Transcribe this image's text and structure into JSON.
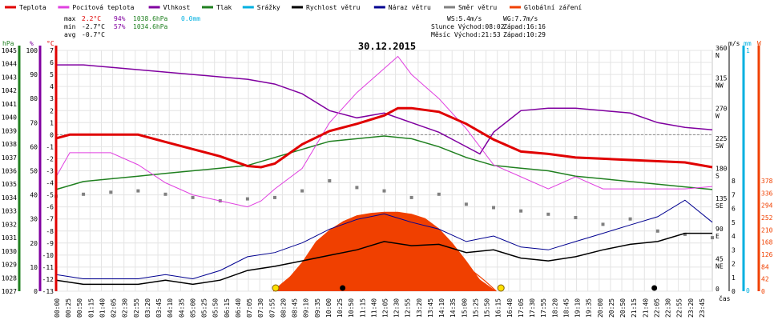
{
  "chart_data": {
    "type": "line",
    "title": "30.12.2015",
    "legend": [
      {
        "label": "Teplota",
        "color": "#e00000"
      },
      {
        "label": "Pocitová teplota",
        "color": "#e040e0"
      },
      {
        "label": "Vlhkost",
        "color": "#8000a0"
      },
      {
        "label": "Tlak",
        "color": "#208020"
      },
      {
        "label": "Srážky",
        "color": "#00b0e0"
      },
      {
        "label": "Rychlost větru",
        "color": "#000000"
      },
      {
        "label": "Náraz větru",
        "color": "#000090"
      },
      {
        "label": "Směr větru",
        "color": "#808080"
      },
      {
        "label": "Globální záření",
        "color": "#f04000"
      }
    ],
    "stats": {
      "labels": [
        "max",
        "min",
        "avg"
      ],
      "temp": [
        "2.2°C",
        "-2.7°C",
        "-0.7°C"
      ],
      "hum": [
        "94%",
        "57%",
        ""
      ],
      "press": [
        "1038.6hPa",
        "1034.6hPa",
        ""
      ],
      "rain": [
        "0.0mm",
        "",
        ""
      ]
    },
    "wind_info": {
      "ws": "WS:5.4m/s",
      "wg": "WG:7.7m/s"
    },
    "sun_info": {
      "sunrise": "Slunce Východ:08:02",
      "sunset": "Západ:16:16"
    },
    "moon_info": {
      "moonrise": "Měsíc Východ:21:53",
      "moonset": "Západ:10:29"
    },
    "axis_units": {
      "press": "hPa",
      "hum": "%",
      "temp": "°C",
      "ms": "m/s",
      "mm": "mm",
      "rad": "W",
      "xlabel": "čas"
    },
    "x_ticks": [
      "00:00",
      "00:25",
      "00:50",
      "01:15",
      "01:40",
      "02:05",
      "02:30",
      "02:55",
      "03:20",
      "03:45",
      "04:10",
      "04:35",
      "05:00",
      "05:25",
      "05:50",
      "06:15",
      "06:40",
      "07:05",
      "07:30",
      "07:55",
      "08:20",
      "08:45",
      "09:10",
      "09:35",
      "10:00",
      "10:25",
      "10:50",
      "11:15",
      "11:40",
      "12:05",
      "12:30",
      "12:55",
      "13:20",
      "13:45",
      "14:10",
      "14:35",
      "15:00",
      "15:25",
      "15:50",
      "16:15",
      "16:40",
      "17:05",
      "17:30",
      "17:55",
      "18:20",
      "18:45",
      "19:10",
      "19:35",
      "20:00",
      "20:25",
      "20:50",
      "21:15",
      "21:40",
      "22:05",
      "22:30",
      "22:55",
      "23:20",
      "23:45"
    ],
    "press_ticks": [
      "1045",
      "1044",
      "1043",
      "1042",
      "1041",
      "1040",
      "1039",
      "1038",
      "1037",
      "1036",
      "1035",
      "1034",
      "1033",
      "1032",
      "1031",
      "1030",
      "1029",
      "1028",
      "1027"
    ],
    "hum_ticks": [
      "100",
      "90",
      "80",
      "70",
      "60",
      "50",
      "40",
      "30",
      "20",
      "10",
      "0"
    ],
    "temp_ticks": [
      "7",
      "6",
      "5",
      "4",
      "3",
      "2",
      "1",
      "0",
      "-1",
      "-2",
      "-3",
      "-4",
      "-5",
      "-6",
      "-7",
      "-8",
      "-9",
      "-10",
      "-11",
      "-12",
      "-13"
    ],
    "dir_ticks": [
      {
        "deg": "360",
        "dir": "N"
      },
      {
        "deg": "315",
        "dir": "NW"
      },
      {
        "deg": "270",
        "dir": "W"
      },
      {
        "deg": "225",
        "dir": "SW"
      },
      {
        "deg": "180",
        "dir": "S"
      },
      {
        "deg": "135",
        "dir": "SE"
      },
      {
        "deg": "90",
        "dir": "E"
      },
      {
        "deg": "45",
        "dir": "NE"
      },
      {
        "deg": "0",
        "dir": ""
      }
    ],
    "ms_ticks": [
      "8",
      "7",
      "6",
      "5",
      "4",
      "3",
      "2",
      "1",
      "0"
    ],
    "mm_ticks": [
      "1",
      "0"
    ],
    "rad_ticks": [
      "378",
      "336",
      "294",
      "252",
      "210",
      "168",
      "126",
      "84",
      "42",
      "0"
    ],
    "ylim": {
      "temp": [
        -13,
        7
      ],
      "press": [
        1027,
        1045
      ],
      "hum": [
        0,
        100
      ],
      "dir": [
        0,
        360
      ],
      "wind": [
        0,
        8
      ],
      "rad": [
        0,
        378
      ]
    },
    "series": [
      {
        "name": "Teplota",
        "color": "#e00000",
        "x": [
          0,
          0.5,
          1,
          2,
          3,
          4,
          5,
          6,
          7,
          7.5,
          8,
          9,
          10,
          11,
          12,
          12.5,
          13,
          14,
          15,
          16,
          17,
          18,
          19,
          20,
          21,
          22,
          23,
          24
        ],
        "values": [
          -0.3,
          0,
          0,
          0,
          0,
          -0.6,
          -1.2,
          -1.8,
          -2.6,
          -2.7,
          -2.4,
          -0.8,
          0.3,
          0.9,
          1.6,
          2.2,
          2.2,
          1.9,
          0.9,
          -0.4,
          -1.4,
          -1.6,
          -1.9,
          -2.0,
          -2.1,
          -2.2,
          -2.3,
          -2.7
        ]
      },
      {
        "name": "Pocitová teplota",
        "color": "#e040e0",
        "x": [
          0,
          0.5,
          1,
          2,
          3,
          4,
          5,
          6,
          7,
          7.5,
          8,
          9,
          10,
          11,
          12,
          12.5,
          13,
          13.5,
          14,
          15,
          16,
          17,
          18,
          19,
          20,
          21,
          22,
          23,
          24
        ],
        "values": [
          -3.5,
          -1.5,
          -1.5,
          -1.5,
          -2.5,
          -4.0,
          -5.0,
          -5.5,
          -6.0,
          -5.5,
          -4.5,
          -2.8,
          1.0,
          3.5,
          5.5,
          6.5,
          5.0,
          4.0,
          3.0,
          0.5,
          -2.5,
          -3.5,
          -4.5,
          -3.5,
          -4.5,
          -4.5,
          -4.5,
          -4.5,
          -4.3
        ]
      },
      {
        "name": "Vlhkost",
        "color": "#8000a0",
        "x": [
          0,
          1,
          2,
          3,
          4,
          5,
          6,
          7,
          8,
          9,
          10,
          11,
          12,
          13,
          14,
          15,
          15.5,
          16,
          17,
          18,
          19,
          20,
          21,
          22,
          23,
          24
        ],
        "values": [
          94,
          94,
          93,
          92,
          91,
          90,
          89,
          88,
          86,
          82,
          75,
          72,
          74,
          70,
          66,
          60,
          57,
          66,
          75,
          76,
          76,
          75,
          74,
          70,
          68,
          67
        ]
      },
      {
        "name": "Tlak",
        "color": "#208020",
        "x": [
          0,
          1,
          2,
          3,
          4,
          5,
          6,
          7,
          8,
          9,
          10,
          11,
          12,
          13,
          14,
          15,
          16,
          17,
          18,
          19,
          20,
          21,
          22,
          23,
          24
        ],
        "values": [
          1034.6,
          1035.2,
          1035.4,
          1035.6,
          1035.8,
          1036.0,
          1036.2,
          1036.4,
          1037.0,
          1037.6,
          1038.2,
          1038.4,
          1038.6,
          1038.4,
          1037.8,
          1037.0,
          1036.4,
          1036.2,
          1036.0,
          1035.6,
          1035.4,
          1035.2,
          1035.0,
          1034.8,
          1034.6
        ]
      },
      {
        "name": "Rychlost větru",
        "color": "#000000",
        "x": [
          0,
          1,
          2,
          3,
          4,
          5,
          6,
          7,
          8,
          9,
          10,
          11,
          12,
          13,
          14,
          15,
          16,
          17,
          18,
          19,
          20,
          21,
          22,
          23,
          24
        ],
        "values": [
          0.8,
          0.5,
          0.5,
          0.5,
          0.8,
          0.5,
          0.8,
          1.5,
          1.8,
          2.2,
          2.6,
          3.0,
          3.6,
          3.3,
          3.4,
          2.8,
          3.0,
          2.4,
          2.2,
          2.5,
          3.0,
          3.4,
          3.6,
          4.2,
          4.2
        ]
      },
      {
        "name": "Náraz větru",
        "color": "#000090",
        "x": [
          0,
          1,
          2,
          3,
          4,
          5,
          6,
          7,
          8,
          9,
          10,
          11,
          12,
          13,
          14,
          15,
          16,
          17,
          18,
          19,
          20,
          21,
          22,
          23,
          24
        ],
        "values": [
          1.2,
          0.9,
          0.9,
          0.9,
          1.2,
          0.9,
          1.5,
          2.5,
          2.8,
          3.5,
          4.5,
          5.2,
          5.6,
          5.0,
          4.5,
          3.6,
          4.0,
          3.2,
          3.0,
          3.6,
          4.2,
          4.8,
          5.4,
          6.6,
          5.0
        ]
      },
      {
        "name": "Globální záření",
        "color": "#f04000",
        "x": [
          7.95,
          8.5,
          9,
          9.5,
          10,
          10.5,
          11,
          11.5,
          12,
          12.5,
          13,
          13.5,
          14,
          14.5,
          15,
          15.5,
          16.1
        ],
        "values": [
          0,
          45,
          100,
          170,
          210,
          240,
          260,
          268,
          272,
          272,
          265,
          250,
          215,
          165,
          105,
          40,
          0
        ]
      },
      {
        "name": "Směr větru",
        "color": "#808080",
        "x": [
          0,
          1,
          2,
          3,
          4,
          5,
          6,
          7,
          8,
          9,
          10,
          11,
          12,
          13,
          14,
          15,
          16,
          17,
          18,
          19,
          20,
          21,
          22,
          23,
          24
        ],
        "values": [
          142,
          145,
          148,
          150,
          145,
          140,
          135,
          138,
          140,
          150,
          165,
          155,
          150,
          140,
          145,
          130,
          125,
          120,
          115,
          110,
          100,
          108,
          90,
          85,
          80
        ]
      }
    ]
  }
}
